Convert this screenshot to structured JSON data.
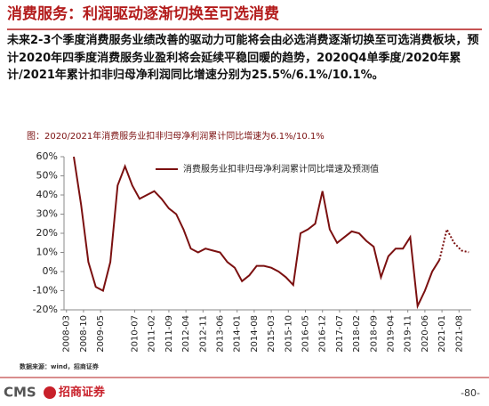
{
  "header": {
    "title": "消费服务：利润驱动逐渐切换至可选消费",
    "text": "未来2-3个季度消费服务业绩改善的驱动力可能将会由必选消费逐渐切换至可选消费板块，预计2020年四季度消费服务业盈利将会延续平稳回暖的趋势，2020Q4单季度/2020年累计/2021年累计扣非归母净利润同比增速分别为25.5%/6.1%/10.1%。"
  },
  "chart_data": {
    "type": "line",
    "title": "图：2020/2021年消费服务业扣非归母净利润累计同比增速为6.1%/10.1%",
    "x": [
      "2008-06",
      "2008-09",
      "2008-12",
      "2009-03",
      "2009-06",
      "2009-09",
      "2009-12",
      "2010-03",
      "2010-06",
      "2010-09",
      "2010-12",
      "2011-03",
      "2011-06",
      "2011-09",
      "2011-12",
      "2012-03",
      "2012-06",
      "2012-09",
      "2012-12",
      "2013-03",
      "2013-06",
      "2013-09",
      "2013-12",
      "2014-03",
      "2014-06",
      "2014-09",
      "2014-12",
      "2015-03",
      "2015-06",
      "2015-09",
      "2015-12",
      "2016-03",
      "2016-06",
      "2016-09",
      "2016-12",
      "2017-03",
      "2017-06",
      "2017-09",
      "2017-12",
      "2018-03",
      "2018-06",
      "2018-09",
      "2018-12",
      "2019-03",
      "2019-06",
      "2019-09",
      "2019-12",
      "2020-03",
      "2020-06",
      "2020-09",
      "2020-12",
      "2021-03",
      "2021-06",
      "2021-09",
      "2021-12"
    ],
    "series": [
      {
        "name": "消费服务业扣非归母净利润累计同比增速及预测值",
        "color": "#7b1010",
        "values": [
          60,
          35,
          5,
          -8,
          -10,
          5,
          45,
          55,
          45,
          38,
          40,
          42,
          38,
          33,
          30,
          22,
          12,
          10,
          12,
          11,
          10,
          5,
          2,
          -5,
          -2,
          3,
          3,
          2,
          0,
          -3,
          -7,
          20,
          22,
          25,
          42,
          22,
          15,
          18,
          21,
          20,
          16,
          13,
          -3,
          8,
          12,
          12,
          18,
          -18,
          -10,
          0,
          6.1,
          null,
          null,
          null,
          null
        ]
      },
      {
        "color": "#7b1010",
        "dash": true,
        "values": [
          null,
          null,
          null,
          null,
          null,
          null,
          null,
          null,
          null,
          null,
          null,
          null,
          null,
          null,
          null,
          null,
          null,
          null,
          null,
          null,
          null,
          null,
          null,
          null,
          null,
          null,
          null,
          null,
          null,
          null,
          null,
          null,
          null,
          null,
          null,
          null,
          null,
          null,
          null,
          null,
          null,
          null,
          null,
          null,
          null,
          null,
          null,
          null,
          null,
          null,
          6.1,
          22,
          15,
          11,
          10.1
        ]
      }
    ],
    "xticks": [
      "2008-03",
      "2008-10",
      "2009-05",
      "2010-07",
      "2011-02",
      "2011-09",
      "2012-04",
      "2012-11",
      "2013-06",
      "2014-01",
      "2014-08",
      "2015-03",
      "2015-10",
      "2016-05",
      "2016-12",
      "2017-07",
      "2018-02",
      "2018-09",
      "2019-04",
      "2019-11",
      "2020-06",
      "2021-01",
      "2021-08"
    ],
    "ylim": [
      -20,
      60
    ],
    "yticks": [
      {
        "value": -20,
        "label": "-20%"
      },
      {
        "value": -10,
        "label": "-10%"
      },
      {
        "value": 0,
        "label": "0%"
      },
      {
        "value": 10,
        "label": "10%"
      },
      {
        "value": 20,
        "label": "20%"
      },
      {
        "value": 30,
        "label": "30%"
      },
      {
        "value": 40,
        "label": "40%"
      },
      {
        "value": 50,
        "label": "50%"
      },
      {
        "value": 60,
        "label": "60%"
      }
    ],
    "source": "数据来源：wind，招商证券"
  },
  "footer": {
    "logo": "CMS",
    "logo_cn": "招商证券",
    "page": "-80-"
  }
}
